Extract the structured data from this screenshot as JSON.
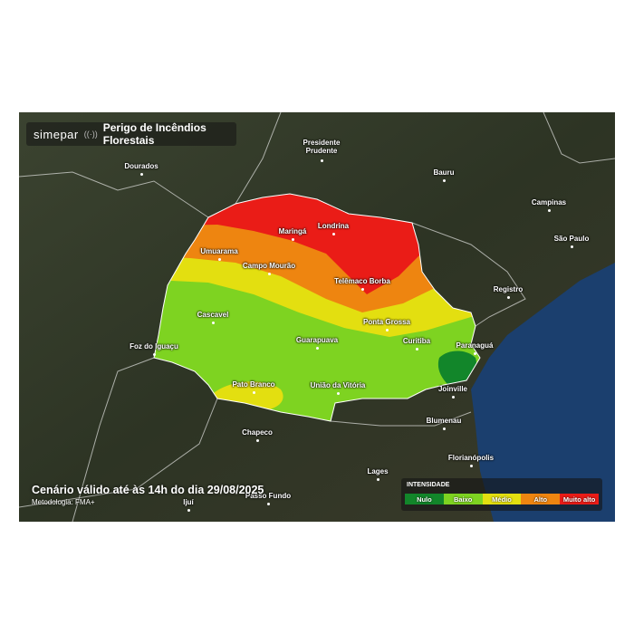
{
  "header": {
    "brand": "simepar",
    "title": "Perigo de Incêndios Florestais"
  },
  "cities": [
    "Dourados",
    "Presidente Prudente",
    "Bauru",
    "Campinas",
    "São Paulo",
    "Registro",
    "Londrina",
    "Maringá",
    "Umuarama",
    "Campo Mourão",
    "Telêmaco Borba",
    "Cascavel",
    "Ponta Grossa",
    "Foz do Iguaçu",
    "Guarapuava",
    "Curitiba",
    "Paranaguá",
    "Pato Branco",
    "União da Vitória",
    "Joinville",
    "Blumenau",
    "Chapeco",
    "Florianópolis",
    "Lages",
    "Passo Fundo",
    "Ijuí"
  ],
  "footer": {
    "validity": "Cenário válido até às 14h do dia 29/08/2025",
    "method": "Metodologia: FMA+"
  },
  "legend": {
    "title": "INTENSIDADE",
    "levels": [
      {
        "label": "Nulo",
        "color": "#12862a"
      },
      {
        "label": "Baixo",
        "color": "#7ed321"
      },
      {
        "label": "Médio",
        "color": "#e3df10"
      },
      {
        "label": "Alto",
        "color": "#ee8510"
      },
      {
        "label": "Muito alto",
        "color": "#ea1c17"
      }
    ]
  }
}
